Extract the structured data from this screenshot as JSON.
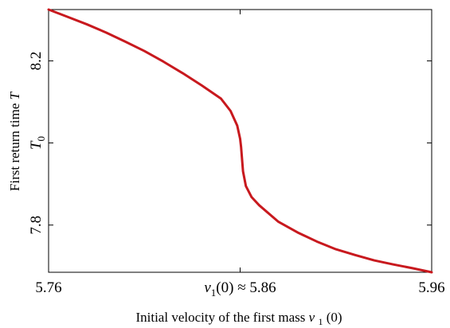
{
  "chart_data": {
    "type": "line",
    "xlabel": "Initial velocity of the first mass v1(0)",
    "ylabel": "First return time T",
    "xlim": [
      5.76,
      5.96
    ],
    "ylim": [
      7.685,
      8.325
    ],
    "grid": false,
    "legend": "none",
    "x_ticks": [
      {
        "value": 5.76,
        "label": "5.76"
      },
      {
        "value": 5.86,
        "label": "v1(0) ≈ 5.86"
      },
      {
        "value": 5.96,
        "label": "5.96"
      }
    ],
    "y_ticks": [
      {
        "value": 7.8,
        "label": "7.8"
      },
      {
        "value": 8.0,
        "label": "T0"
      },
      {
        "value": 8.2,
        "label": "8.2"
      }
    ],
    "series": [
      {
        "color": "#c8191e",
        "x": [
          5.76,
          5.77,
          5.78,
          5.79,
          5.8,
          5.81,
          5.82,
          5.83,
          5.84,
          5.85,
          5.855,
          5.8585,
          5.86,
          5.8605,
          5.8615,
          5.863,
          5.866,
          5.87,
          5.88,
          5.89,
          5.9,
          5.91,
          5.92,
          5.93,
          5.94,
          5.95,
          5.96
        ],
        "y": [
          8.325,
          8.307,
          8.289,
          8.269,
          8.247,
          8.224,
          8.198,
          8.17,
          8.14,
          8.108,
          8.078,
          8.042,
          8.01,
          7.99,
          7.931,
          7.895,
          7.868,
          7.848,
          7.808,
          7.782,
          7.76,
          7.741,
          7.727,
          7.714,
          7.704,
          7.695,
          7.685
        ]
      }
    ]
  }
}
